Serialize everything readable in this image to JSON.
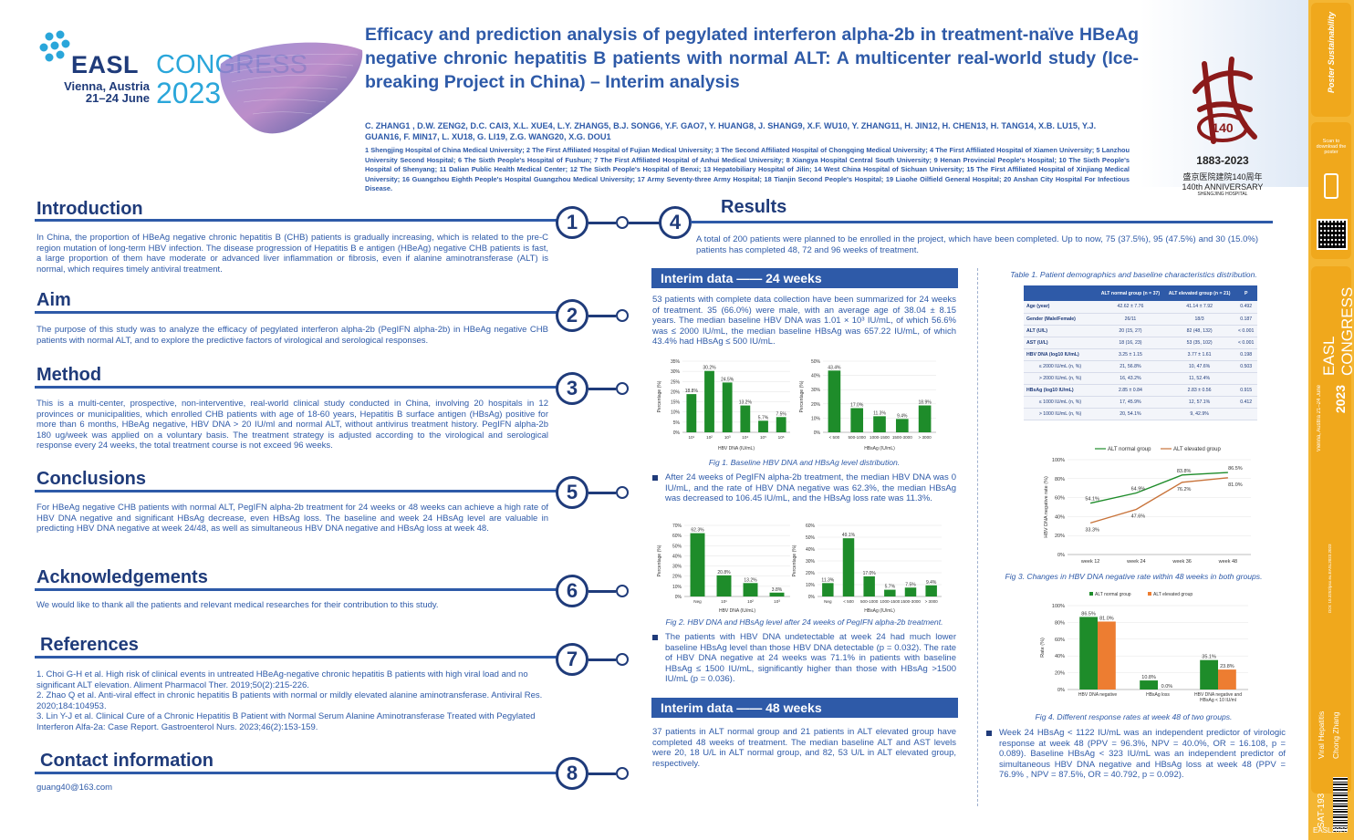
{
  "header": {
    "title": "Efficacy and prediction analysis of pegylated interferon alpha-2b in treatment-naïve HBeAg negative chronic hepatitis B patients with normal ALT: A multicenter real-world study (Ice-breaking Project in China) – Interim analysis",
    "authors": "C. ZHANG1 , D.W. ZENG2, D.C. CAI3, X.L. XUE4, L.Y. ZHANG5, B.J. SONG6, Y.F. GAO7, Y. HUANG8, J. SHANG9, X.F. WU10, Y. ZHANG11, H. JIN12, H. CHEN13, H. TANG14, X.B. LU15, Y.J. GUAN16, F. MIN17, L. XU18, G. LI19, Z.G. WANG20, X.G. DOU1",
    "affiliations": "1 Shengjing Hospital of China Medical University; 2 The First Affiliated Hospital of Fujian Medical University; 3 The Second Affiliated Hospital of Chongqing Medical University; 4 The First Affiliated Hospital of Xiamen University; 5 Lanzhou University Second Hospital; 6 The Sixth People's Hospital of Fushun; 7 The First Affiliated Hospital of Anhui Medical University; 8 Xiangya Hospital Central South University; 9 Henan Provincial People's Hospital; 10 The Sixth People's Hospital of Shenyang; 11 Dalian Public Health Medical Center; 12 The Sixth People's Hospital of Benxi; 13 Hepatobiliary Hospital of Jilin; 14 West China Hospital of Sichuan University; 15 The First Affiliated Hospital of Xinjiang Medical University; 16 Guangzhou Eighth People's Hospital Guangzhou Medical University; 17 Army Seventy-three Army Hospital; 18 Tianjin Second People's Hospital; 19 Liaohe Oilfield General Hospital; 20 Anshan City Hospital For Infectious Disease."
  },
  "logo": {
    "easl": "EASL",
    "congress": "CONGRESS",
    "city": "Vienna, Austria",
    "dates": "21–24 June",
    "year": "2023"
  },
  "anniversary": {
    "years": "1883-2023",
    "chinese": "盛京医院建院140周年",
    "label": "140th ANNIVERSARY",
    "hospital": "SHENGJING HOSPITAL"
  },
  "sidebar": {
    "brand": "Poster Sustainability",
    "scan": "Scan to download the poster",
    "easl_congress": "EASL CONGRESS",
    "vienna": "Vienna, Austria 21–24 June",
    "year": "2023",
    "doi": "DOI: 10.3252/pso.eu.EASL2023.2023",
    "topic": "Viral Hepatitis",
    "author": "Chong Zhang",
    "code": "SAT-193",
    "footer": "EASL2023"
  },
  "sections": {
    "introduction": {
      "num": "1",
      "title": "Introduction",
      "text": "In China, the proportion of HBeAg negative chronic hepatitis B (CHB) patients is gradually increasing, which is related to the pre-C region mutation of long-term HBV infection. The disease progression of Hepatitis B e antigen (HBeAg) negative CHB patients is fast, a large proportion of them have moderate or advanced liver inflammation or fibrosis, even if alanine aminotransferase (ALT) is normal, which requires timely antiviral treatment."
    },
    "aim": {
      "num": "2",
      "title": "Aim",
      "text": "The purpose of this study was to analyze the efficacy of pegylated interferon alpha-2b (PegIFN alpha-2b) in HBeAg negative CHB patients with normal ALT, and to explore the predictive factors of virological and serological responses."
    },
    "method": {
      "num": "3",
      "title": "Method",
      "text": "This is a multi-center, prospective, non-interventive, real-world clinical study conducted in China, involving 20 hospitals in 12 provinces or municipalities, which enrolled CHB patients with age of 18-60 years, Hepatitis B surface antigen (HBsAg) positive for more than 6 months, HBeAg negative, HBV DNA > 20 IU/ml and normal ALT, without antivirus treatment history. PegIFN alpha-2b 180 ug/week was applied on a voluntary basis. The treatment strategy is adjusted according to the virological and serological response every 24 weeks, the total treatment course is not exceed 96 weeks."
    },
    "conclusions": {
      "num": "5",
      "title": "Conclusions",
      "text": "For HBeAg negative CHB patients with normal ALT, PegIFN alpha-2b treatment for 24 weeks or 48 weeks can achieve a high rate of HBV DNA negative and significant HBsAg decrease, even HBsAg loss. The baseline and week 24 HBsAg level are valuable in predicting HBV DNA negative at week 24/48, as well as simultaneous HBV DNA negative and HBsAg loss at week 48."
    },
    "acknowledgements": {
      "num": "6",
      "title": "Acknowledgements",
      "text": "We would like to thank all the patients and relevant medical researches for their contribution to this study."
    },
    "references": {
      "num": "7",
      "title": "References",
      "items": [
        "1.  Choi G-H et al. High risk of clinical events in untreated HBeAg-negative chronic hepatitis B patients with high viral load and no significant ALT elevation. Aliment Pharmacol Ther. 2019;50(2):215-226.",
        "2.  Zhao Q et al. Anti-viral effect in chronic hepatitis B patients with normal or mildly elevated alanine aminotransferase. Antiviral Res. 2020;184:104953.",
        "3.  Lin Y-J et al. Clinical Cure of a Chronic Hepatitis B Patient with Normal Serum Alanine Aminotransferase Treated with Pegylated Interferon Alfa-2a: Case Report. Gastroenterol Nurs. 2023;46(2):153-159."
      ]
    },
    "contact": {
      "num": "8",
      "title": "Contact information",
      "email": "guang40@163.com"
    },
    "results": {
      "num": "4",
      "title": "Results",
      "intro": "A total of 200 patients were planned to be enrolled in the project, which have been completed. Up to now, 75 (37.5%), 95 (47.5%) and 30 (15.0%) patients has completed 48, 72 and 96 weeks of treatment.",
      "band24": "Interim data —— 24 weeks",
      "text24": "53 patients with complete data collection have been summarized for 24 weeks of treatment. 35 (66.0%) were male, with an average age of 38.04 ± 8.15 years. The median baseline HBV DNA was 1.01 × 10³ IU/mL, of which 56.6% was ≤ 2000 IU/mL, the median baseline HBsAg was 657.22 IU/mL, of which 43.4% had HBsAg ≤ 500 IU/mL.",
      "fig1": "Fig 1. Baseline HBV DNA and HBsAg level distribution.",
      "bullet1": "After 24 weeks of PegIFN alpha-2b treatment, the median HBV DNA was 0 IU/mL, and the rate of HBV DNA negative was 62.3%, the median HBsAg was decreased to 106.45 IU/mL, and the HBsAg loss rate was 11.3%.",
      "fig2": "Fig 2. HBV DNA and HBsAg level after 24 weeks of PegIFN alpha-2b treatment.",
      "bullet2": "The patients with HBV DNA undetectable at week 24 had much lower baseline HBsAg level than those HBV DNA detectable (p = 0.032). The rate of HBV DNA negative at 24 weeks was 71.1% in patients with baseline HBsAg ≤ 1500 IU/mL, significantly higher than those with HBsAg >1500 IU/mL (p = 0.036).",
      "band48": "Interim data —— 48 weeks",
      "text48": "37 patients in ALT normal group and 21 patients in ALT elevated group have completed 48 weeks of treatment. The median baseline ALT and AST levels were 20, 18 U/L in  ALT normal group, and 82, 53 U/L in  ALT elevated group, respectively.",
      "table_caption": "Table 1. Patient demographics and baseline characteristics distribution.",
      "fig3": "Fig 3. Changes in HBV DNA negative rate within 48 weeks in both groups.",
      "fig4": "Fig 4. Different response rates at week 48 of  two groups.",
      "bullet3": "Week 24 HBsAg < 1122 IU/mL was an independent predictor of virologic response at week 48 (PPV = 96.3%, NPV = 40.0%, OR = 16.108, p = 0.089). Baseline HBsAg < 323 IU/mL was an independent predictor of simultaneous HBV DNA negative and HBsAg loss at week 48 (PPV = 76.9% , NPV = 87.5%, OR = 40.792, p = 0.092)."
    }
  },
  "table1": {
    "headers": [
      "",
      "ALT normal group (n = 37)",
      "ALT elevated group (n = 21)",
      "P"
    ],
    "rows": [
      [
        "Age (year)",
        "42.62 ± 7.76",
        "41.14 ± 7.92",
        "0.492"
      ],
      [
        "Gender (Male/Female)",
        "26/11",
        "18/3",
        "0.187"
      ],
      [
        "ALT (U/L)",
        "20 (15, 27)",
        "82 (48, 132)",
        "< 0.001"
      ],
      [
        "AST (U/L)",
        "18 (16, 23)",
        "53 (35, 102)",
        "< 0.001"
      ],
      [
        "HBV DNA (log10 IU/mL)",
        "3.25 ± 1.15",
        "3.77 ± 1.61",
        "0.198"
      ],
      [
        "≤ 2000 IU/mL (n, %)",
        "21, 56.8%",
        "10, 47.6%",
        "0.503"
      ],
      [
        "> 2000 IU/mL (n, %)",
        "16, 43.2%",
        "11, 52.4%",
        ""
      ],
      [
        "HBsAg (log10 IU/mL)",
        "2.85 ± 0.84",
        "2.83 ± 0.56",
        "0.915"
      ],
      [
        "≤ 1000 IU/mL (n, %)",
        "17, 45.9%",
        "12, 57.1%",
        "0.412"
      ],
      [
        "> 1000 IU/mL (n, %)",
        "20, 54.1%",
        "9, 42.9%",
        ""
      ]
    ]
  },
  "chart_data": [
    {
      "type": "bar",
      "id": "fig1a",
      "categories": [
        "10¹",
        "10²",
        "10³",
        "10⁴",
        "10⁵",
        "10⁶"
      ],
      "values": [
        18.8,
        30.2,
        24.5,
        13.2,
        5.7,
        7.5
      ],
      "labels": [
        "18.8%",
        "30.2%",
        "24.5%",
        "13.2%",
        "5.7%",
        "7.5%"
      ],
      "xlabel": "HBV DNA (IU/mL)",
      "ylabel": "Percentage (%)",
      "ylim": [
        0,
        35
      ],
      "ticks": [
        "0%",
        "5%",
        "10%",
        "15%",
        "20%",
        "25%",
        "30%",
        "35%"
      ]
    },
    {
      "type": "bar",
      "id": "fig1b",
      "categories": [
        "< 500",
        "500-1000",
        "1000-1500",
        "1500-3000",
        "> 3000"
      ],
      "values": [
        43.4,
        17.0,
        11.3,
        9.4,
        18.9
      ],
      "labels": [
        "43.4%",
        "17.0%",
        "11.3%",
        "9.4%",
        "18.9%"
      ],
      "xlabel": "HBsAg (IU/mL)",
      "ylabel": "Percentage (%)",
      "ylim": [
        0,
        50
      ],
      "ticks": [
        "0%",
        "10%",
        "20%",
        "30%",
        "40%",
        "50%"
      ]
    },
    {
      "type": "bar",
      "id": "fig2a",
      "categories": [
        "Neg",
        "10¹",
        "10²",
        "10³"
      ],
      "values": [
        62.3,
        20.8,
        13.2,
        3.8
      ],
      "labels": [
        "62.3%",
        "20.8%",
        "13.2%",
        "3.8%"
      ],
      "xlabel": "HBV DNA (IU/mL)",
      "ylabel": "Percentage (%)",
      "ylim": [
        0,
        70
      ],
      "ticks": [
        "0%",
        "10%",
        "20%",
        "30%",
        "40%",
        "50%",
        "60%",
        "70%"
      ]
    },
    {
      "type": "bar",
      "id": "fig2b",
      "categories": [
        "Neg",
        "< 500",
        "500-1000",
        "1000-1500",
        "1500-3000",
        "> 3000"
      ],
      "values": [
        11.3,
        49.1,
        17.0,
        5.7,
        7.5,
        9.4
      ],
      "labels": [
        "11.3%",
        "49.1%",
        "17.0%",
        "5.7%",
        "7.5%",
        "9.4%"
      ],
      "xlabel": "HBsAg (IU/mL)",
      "ylabel": "Percentage (%)",
      "ylim": [
        0,
        60
      ],
      "ticks": [
        "0%",
        "10%",
        "20%",
        "30%",
        "40%",
        "50%",
        "60%"
      ]
    },
    {
      "type": "line",
      "id": "fig3",
      "x": [
        "week 12",
        "week 24",
        "week 36",
        "week 48"
      ],
      "series": [
        {
          "name": "ALT normal group",
          "values": [
            54.1,
            64.9,
            83.8,
            86.5
          ],
          "labels": [
            "54.1%",
            "64.9%",
            "83.8%",
            "86.5%"
          ],
          "color": "#1e8c2a"
        },
        {
          "name": "ALT elevated group",
          "values": [
            33.3,
            47.6,
            76.2,
            81.0
          ],
          "labels": [
            "33.3%",
            "47.6%",
            "76.2%",
            "81.0%"
          ],
          "color": "#c8733a"
        }
      ],
      "ylabel": "HBV DNA negative rate (%)",
      "ylim": [
        0,
        100
      ],
      "ticks": [
        "0%",
        "20%",
        "40%",
        "60%",
        "80%",
        "100%"
      ],
      "legend": "top"
    },
    {
      "type": "bar",
      "id": "fig4",
      "categories": [
        "HBV DNA negative",
        "HBsAg loss",
        "HBV DNA negative and HBsAg < 10 IU/ml"
      ],
      "series": [
        {
          "name": "ALT normal group",
          "values": [
            86.5,
            10.8,
            35.1
          ],
          "labels": [
            "86.5%",
            "10.8%",
            "35.1%"
          ],
          "color": "#1e8c2a"
        },
        {
          "name": "ALT elevated group",
          "values": [
            81.0,
            0.0,
            23.8
          ],
          "labels": [
            "81.0%",
            "0.0%",
            "23.8%"
          ],
          "color": "#ed7d31"
        }
      ],
      "ylabel": "Rate (%)",
      "ylim": [
        0,
        100
      ],
      "ticks": [
        "0%",
        "20%",
        "40%",
        "60%",
        "80%",
        "100%"
      ],
      "legend": "top"
    }
  ]
}
